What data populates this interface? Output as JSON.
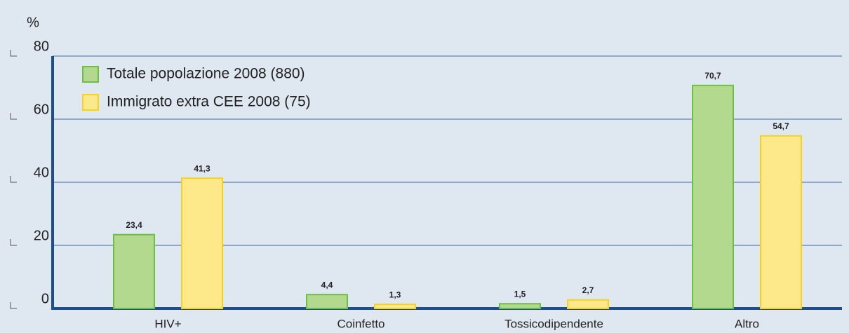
{
  "chart_data": {
    "type": "bar",
    "y_label": "%",
    "categories": [
      "HIV+",
      "Coinfetto",
      "Tossicodipendente",
      "Altro"
    ],
    "series": [
      {
        "name": "Totale popolazione 2008 (880)",
        "color": "#b3d98f",
        "stroke": "#6cbf45",
        "values": [
          23.4,
          4.4,
          1.5,
          70.7
        ],
        "value_labels": [
          "23,4",
          "4,4",
          "1,5",
          "70,7"
        ]
      },
      {
        "name": "Immigrato extra CEE 2008 (75)",
        "color": "#fde98a",
        "stroke": "#f5d31c",
        "values": [
          41.3,
          1.3,
          2.7,
          54.7
        ],
        "value_labels": [
          "41,3",
          "1,3",
          "2,7",
          "54,7"
        ]
      }
    ],
    "ylim": [
      0,
      80
    ],
    "yticks": [
      0,
      20,
      40,
      60,
      80
    ],
    "grid": true,
    "legend": "upper left"
  }
}
